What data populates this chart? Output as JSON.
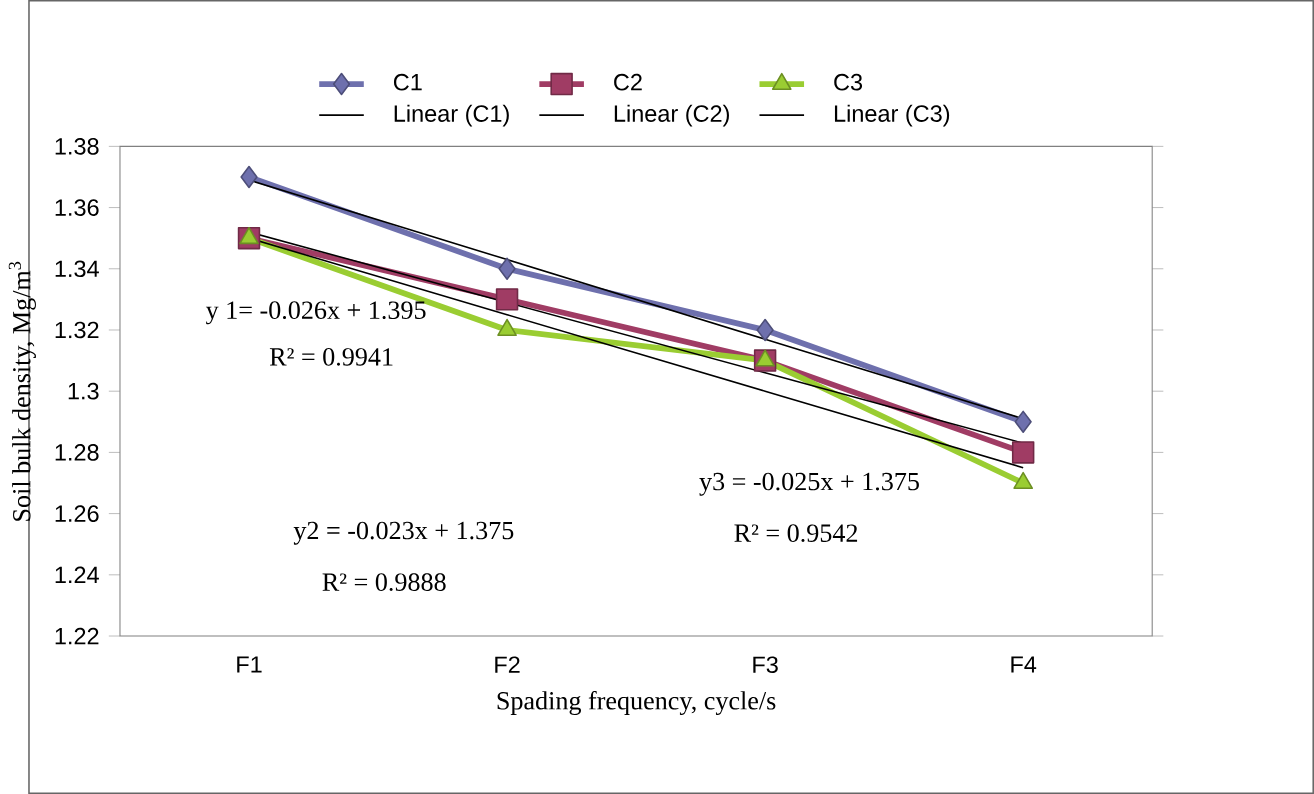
{
  "chart_data": {
    "type": "line",
    "categories": [
      "F1",
      "F2",
      "F3",
      "F4"
    ],
    "xlabel": "Spading frequency, cycle/s",
    "ylabel": "Soil bulk density, Mg/m$^{3}$",
    "ylim": [
      1.22,
      1.38
    ],
    "yticks": [
      1.22,
      1.24,
      1.26,
      1.28,
      1.3,
      1.32,
      1.34,
      1.36,
      1.38
    ],
    "legend": "top",
    "series": [
      {
        "name": "C1",
        "color": "#6e70ad",
        "marker": "diamond",
        "values": [
          1.37,
          1.34,
          1.32,
          1.29
        ]
      },
      {
        "name": "C2",
        "color": "#a03c64",
        "marker": "square",
        "values": [
          1.35,
          1.33,
          1.31,
          1.28
        ]
      },
      {
        "name": "C3",
        "color": "#9acd32",
        "marker": "triangle",
        "values": [
          1.35,
          1.32,
          1.31,
          1.27
        ]
      },
      {
        "name": "Linear (C1)",
        "type": "line",
        "color": "#000000",
        "marker": "none",
        "values": [
          1.369,
          1.343,
          1.317,
          1.291
        ]
      },
      {
        "name": "Linear (C2)",
        "type": "line",
        "color": "#000000",
        "marker": "none",
        "values": [
          1.352,
          1.329,
          1.306,
          1.283
        ]
      },
      {
        "name": "Linear (C3)",
        "type": "line",
        "color": "#000000",
        "marker": "none",
        "values": [
          1.35,
          1.325,
          1.3,
          1.275
        ]
      }
    ],
    "annotations": [
      "y 1= -0.026x + 1.395",
      "R² = 0.9941",
      "y2 = -0.023x + 1.375",
      "R² = 0.9888",
      "y3 = -0.025x + 1.375",
      "R² = 0.9542"
    ]
  }
}
